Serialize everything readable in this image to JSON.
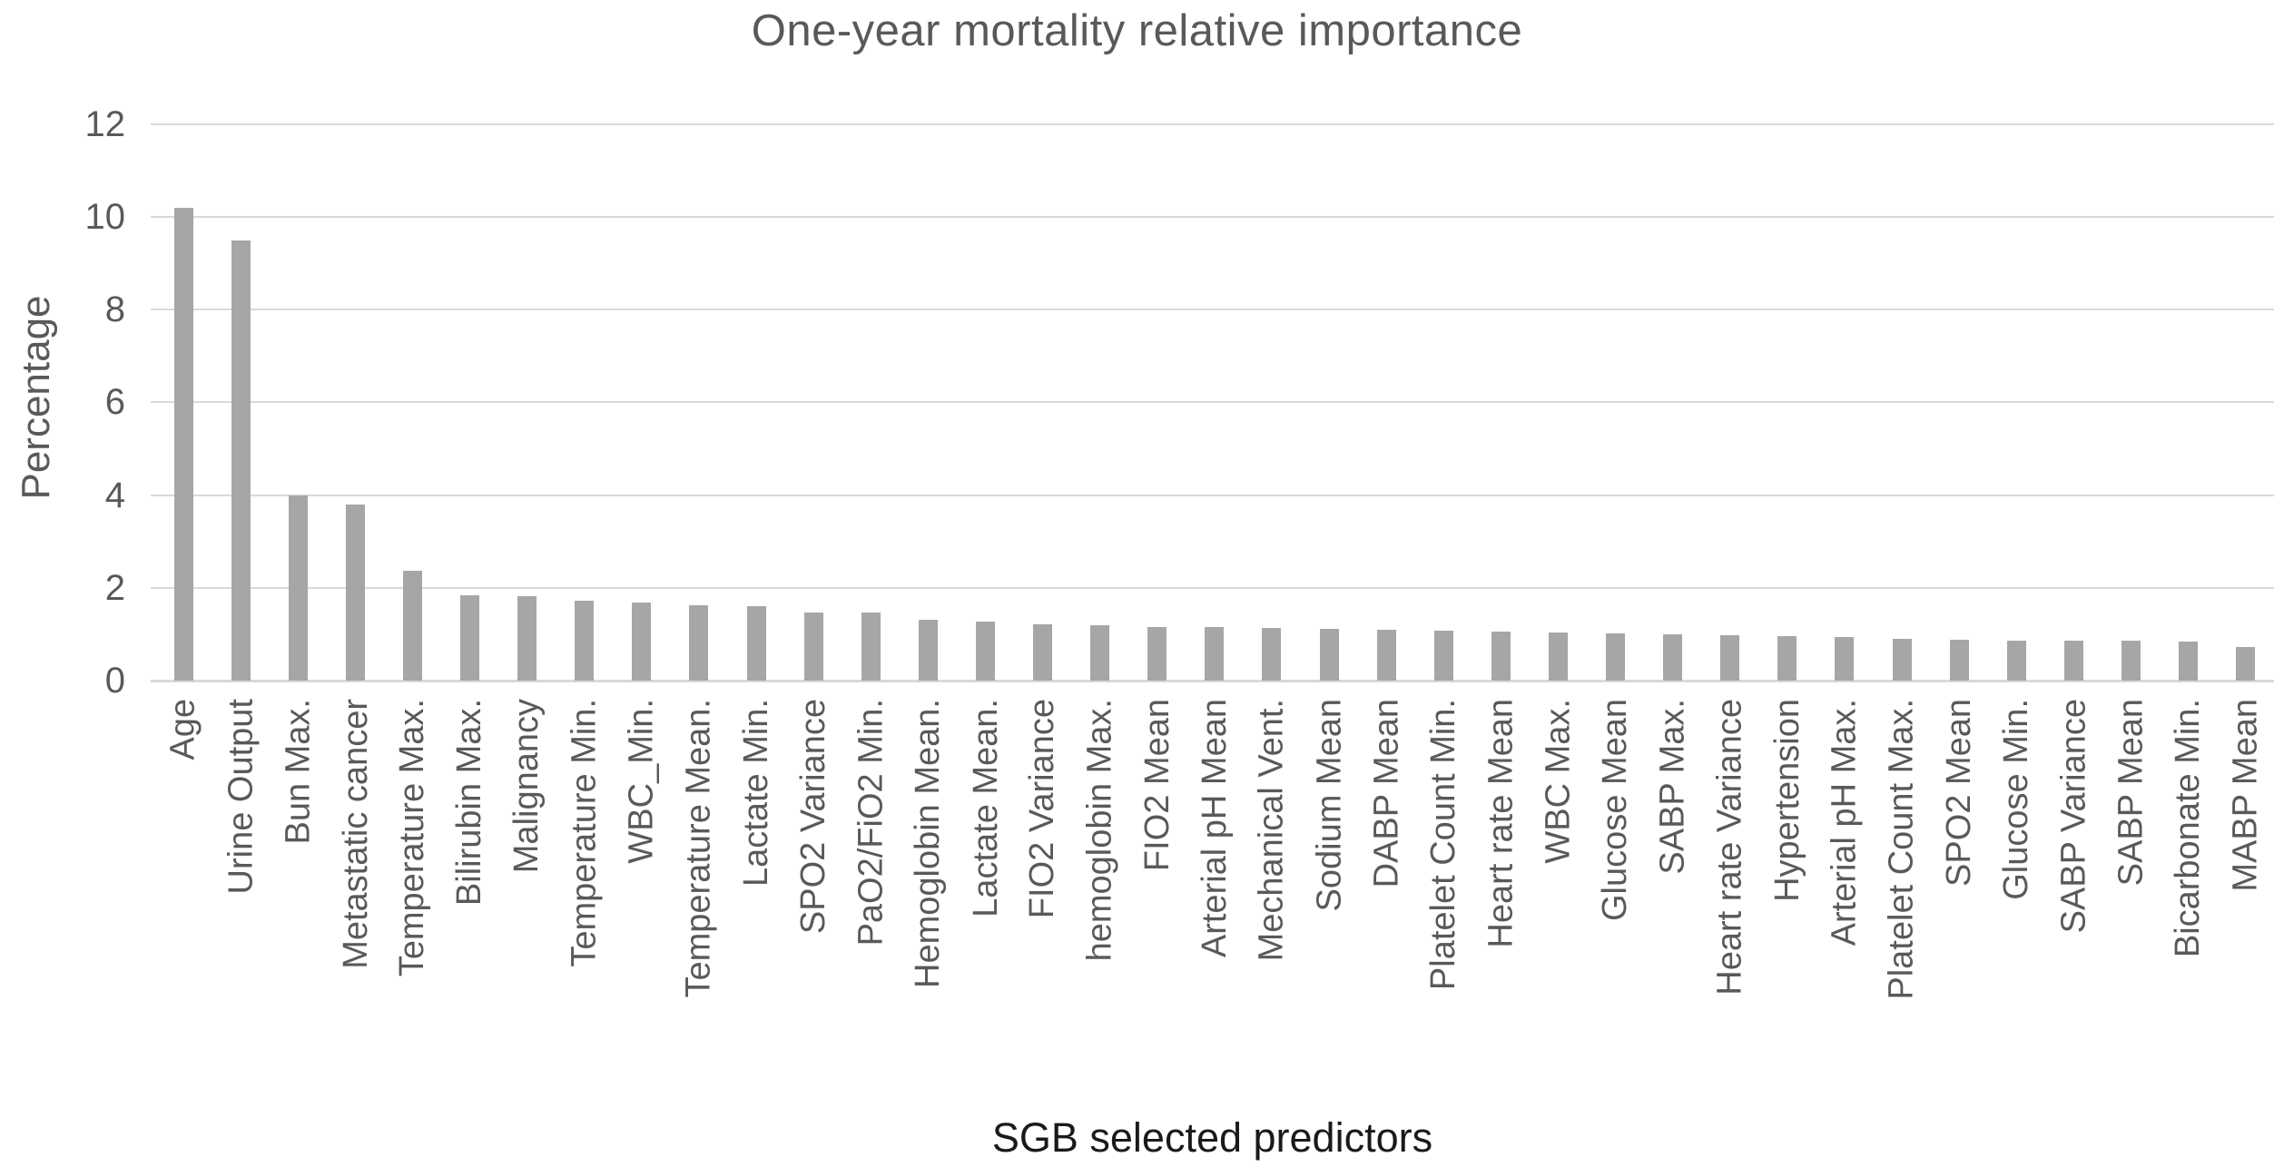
{
  "chart_data": {
    "type": "bar",
    "title": "One-year mortality relative importance",
    "xlabel": "SGB selected predictors",
    "ylabel": "Percentage",
    "ylim": [
      0,
      12
    ],
    "yticks": [
      12,
      10,
      8,
      6,
      4,
      2,
      0
    ],
    "grid": true,
    "legend_position": "none",
    "bar_color": "#a6a6a6",
    "gridline_color": "#d9d9d9",
    "axis_text_color": "#595959",
    "xlabel_color": "#1a1a1a",
    "categories": [
      "Age",
      "Urine Output",
      "Bun Max.",
      "Metastatic cancer",
      "Temperature Max.",
      "Bilirubin Max.",
      "Malignancy",
      "Temperature Min.",
      "WBC_Min.",
      "Temperature Mean.",
      "Lactate Min.",
      "SPO2 Variance",
      "PaO2/FiO2 Min.",
      "Hemoglobin Mean.",
      "Lactate Mean.",
      "FIO2 Variance",
      "hemoglobin Max.",
      "FIO2 Mean",
      "Arterial pH Mean",
      "Mechanical Vent.",
      "Sodium Mean",
      "DABP Mean",
      "Platelet Count Min.",
      "Heart rate Mean",
      "WBC Max.",
      "Glucose Mean",
      "SABP Max.",
      "Heart rate Variance",
      "Hypertension",
      "Arterial pH Max.",
      "Platelet Count Max.",
      "SPO2 Mean",
      "Glucose Min.",
      "SABP Variance",
      "SABP Mean",
      "Bicarbonate Min.",
      "MABP Mean"
    ],
    "values": [
      10.2,
      9.5,
      4.0,
      3.8,
      2.37,
      1.83,
      1.82,
      1.72,
      1.68,
      1.62,
      1.6,
      1.47,
      1.46,
      1.32,
      1.27,
      1.22,
      1.2,
      1.16,
      1.15,
      1.13,
      1.12,
      1.1,
      1.08,
      1.05,
      1.03,
      1.01,
      1.0,
      0.97,
      0.95,
      0.93,
      0.9,
      0.88,
      0.87,
      0.86,
      0.86,
      0.85,
      0.72
    ]
  }
}
